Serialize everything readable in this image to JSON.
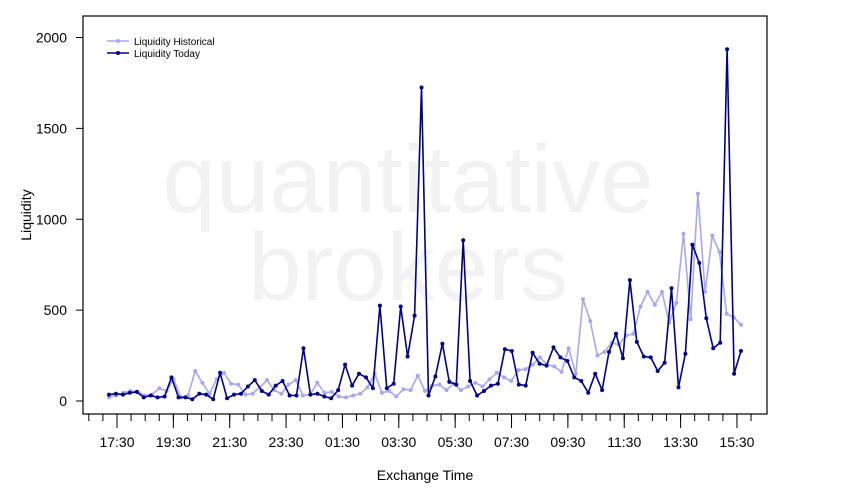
{
  "chart_data": {
    "type": "line",
    "xlabel": "Exchange Time",
    "ylabel": "Liquidity",
    "ylim": [
      -60,
      2120
    ],
    "yticks": [
      0,
      500,
      1000,
      1500,
      2000
    ],
    "grid": false,
    "legend_position": "top-left",
    "watermark": [
      "quantitative",
      "brokers"
    ],
    "x_tick_labels": [
      "17:30",
      "19:30",
      "21:30",
      "23:30",
      "01:30",
      "03:30",
      "05:30",
      "07:30",
      "09:30",
      "11:30",
      "13:30",
      "15:30"
    ],
    "colors": {
      "historical": "#a8a8f0",
      "today": "#00008b"
    },
    "series": [
      {
        "name": "Liquidity Historical",
        "values": [
          20,
          30,
          45,
          55,
          50,
          30,
          35,
          70,
          55,
          120,
          20,
          30,
          165,
          100,
          40,
          120,
          155,
          95,
          90,
          35,
          40,
          75,
          115,
          60,
          40,
          90,
          115,
          30,
          35,
          100,
          45,
          50,
          25,
          20,
          30,
          40,
          75,
          150,
          45,
          55,
          25,
          65,
          60,
          140,
          55,
          85,
          90,
          60,
          95,
          60,
          80,
          100,
          80,
          120,
          155,
          130,
          110,
          170,
          175,
          200,
          240,
          200,
          190,
          160,
          290,
          150,
          560,
          440,
          250,
          270,
          320,
          310,
          360,
          370,
          520,
          600,
          530,
          600,
          430,
          540,
          920,
          450,
          1140,
          600,
          910,
          820,
          480,
          460,
          420
        ]
      },
      {
        "name": "Liquidity Today",
        "values": [
          35,
          40,
          35,
          45,
          50,
          20,
          30,
          20,
          25,
          130,
          20,
          20,
          10,
          40,
          35,
          10,
          155,
          15,
          35,
          40,
          80,
          115,
          55,
          35,
          85,
          110,
          30,
          30,
          290,
          35,
          40,
          25,
          15,
          60,
          200,
          85,
          150,
          130,
          70,
          525,
          70,
          95,
          520,
          245,
          470,
          1725,
          30,
          135,
          315,
          105,
          90,
          885,
          110,
          30,
          55,
          85,
          95,
          285,
          275,
          90,
          85,
          265,
          205,
          195,
          295,
          240,
          220,
          130,
          110,
          45,
          150,
          60,
          270,
          370,
          235,
          665,
          325,
          245,
          240,
          165,
          210,
          620,
          75,
          260,
          860,
          760,
          455,
          290,
          320,
          1935,
          150,
          275
        ]
      }
    ]
  }
}
